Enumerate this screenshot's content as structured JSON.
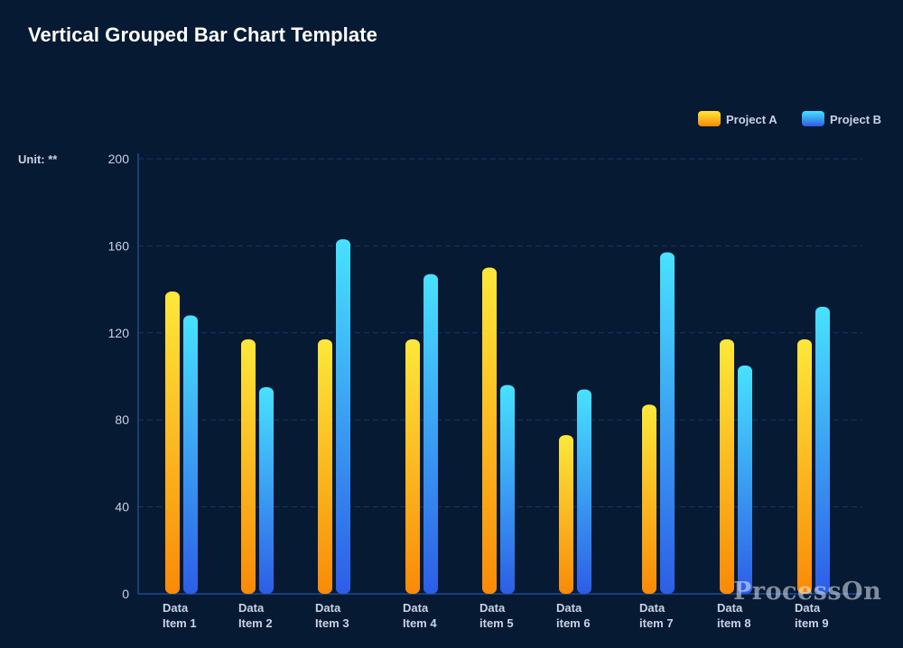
{
  "chart_data": {
    "type": "bar",
    "title": "Vertical Grouped Bar Chart Template",
    "unit_label": "Unit: **",
    "categories": [
      "Data Item 1",
      "Data Item 2",
      "Data Item 3",
      "Data Item 4",
      "Data item 5",
      "Data item 6",
      "Data item 7",
      "Data item 8",
      "Data item 9"
    ],
    "category_lines": [
      [
        "Data",
        "Item 1"
      ],
      [
        "Data",
        "Item 2"
      ],
      [
        "Data",
        "Item 3"
      ],
      [
        "Data",
        "Item 4"
      ],
      [
        "Data",
        "item 5"
      ],
      [
        "Data",
        "item 6"
      ],
      [
        "Data",
        "item 7"
      ],
      [
        "Data",
        "item 8"
      ],
      [
        "Data",
        "item 9"
      ]
    ],
    "series": [
      {
        "name": "Project A",
        "values": [
          139,
          117,
          117,
          117,
          150,
          73,
          87,
          117,
          117
        ],
        "color_top": "#fde83a",
        "color_bottom": "#f98a08"
      },
      {
        "name": "Project B",
        "values": [
          128,
          95,
          163,
          147,
          96,
          94,
          157,
          105,
          132
        ],
        "color_top": "#48e2ff",
        "color_bottom": "#2d5de6"
      }
    ],
    "ylim": [
      0,
      200
    ],
    "yticks": [
      "0",
      "40",
      "80",
      "120",
      "160",
      "200"
    ],
    "grid": true,
    "legend_position": "top-right",
    "xlabel": "",
    "ylabel": ""
  },
  "watermark": "ProcessOn",
  "colors": {
    "background": "#071a34",
    "axis": "#1f4b8f",
    "grid": "#173866"
  }
}
